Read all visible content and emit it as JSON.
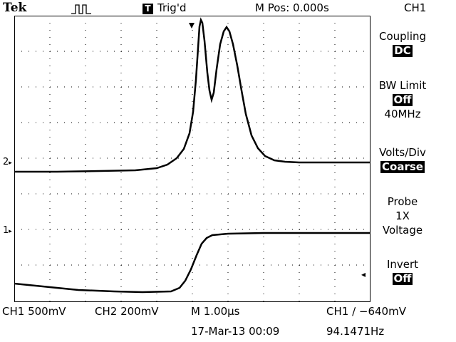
{
  "header": {
    "brand": "Tek",
    "trigger_icon": "trigger-pulse-icon",
    "trig_badge": "T",
    "trig_status": "Trig'd",
    "mpos": "M Pos: 0.000s",
    "channel": "CH1"
  },
  "menu": {
    "coupling_label": "Coupling",
    "coupling_value": "DC",
    "bw_label": "BW Limit",
    "bw_value": "Off",
    "bw_freq": "40MHz",
    "voltsdiv_label": "Volts/Div",
    "voltsdiv_value": "Coarse",
    "probe_label": "Probe",
    "probe_value": "1X",
    "probe_type": "Voltage",
    "invert_label": "Invert",
    "invert_value": "Off"
  },
  "markers": {
    "ch2": "2",
    "ch1": "1"
  },
  "footer": {
    "ch1_scale": "CH1  500mV",
    "ch2_scale": "CH2  200mV",
    "timebase": "M 1.00µs",
    "trigger": "CH1 ∕ −640mV",
    "date": "17-Mar-13 00:09",
    "freq": "94.1471Hz"
  },
  "colors": {
    "trace": "#000000",
    "grid": "#000000",
    "background": "#ffffff"
  }
}
